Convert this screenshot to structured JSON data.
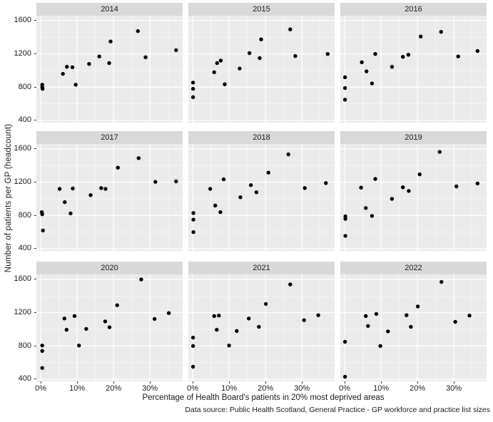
{
  "figure": {
    "y_axis_title": "Number of patients per GP (headcount)",
    "x_axis_title": "Percentage of Health Board's patients in 20% most deprived areas",
    "caption": "Data source: Public Health Scotland, General Practice - GP workforce and practice list sizes"
  },
  "chart_data": {
    "type": "scatter",
    "facet_variable": "year",
    "xlabel": "Percentage of Health Board's patients in 20% most deprived areas",
    "ylabel": "Number of patients per GP (headcount)",
    "xlim": [
      -1.2,
      39.0
    ],
    "ylim": [
      374,
      1660
    ],
    "x_ticks": [
      0,
      10,
      20,
      30
    ],
    "x_tick_labels": [
      "0%",
      "10%",
      "20%",
      "30%"
    ],
    "y_ticks": [
      400,
      800,
      1200,
      1600
    ],
    "y_tick_labels": [
      "400",
      "800",
      "1200",
      "1600"
    ],
    "x_minor": [
      5,
      15,
      25,
      35
    ],
    "y_minor": [
      600,
      1000,
      1400
    ],
    "grid": "on",
    "legend": "none",
    "colors": {
      "panel_background": "#ebebeb",
      "strip_background": "#d9d9d9",
      "gridline": "#ffffff",
      "point": "#000000",
      "text": "#1a1a1a"
    },
    "facets": [
      {
        "label": "2014",
        "points": [
          [
            0.4,
            830
          ],
          [
            0.4,
            800
          ],
          [
            0.5,
            780
          ],
          [
            6.1,
            960
          ],
          [
            7.2,
            1045
          ],
          [
            8.7,
            1040
          ],
          [
            9.6,
            830
          ],
          [
            13.3,
            1080
          ],
          [
            16.1,
            1170
          ],
          [
            18.8,
            1090
          ],
          [
            19.2,
            1350
          ],
          [
            26.7,
            1475
          ],
          [
            28.8,
            1160
          ],
          [
            37.2,
            1245
          ]
        ]
      },
      {
        "label": "2015",
        "points": [
          [
            0.1,
            855
          ],
          [
            0.1,
            780
          ],
          [
            0.1,
            680
          ],
          [
            5.9,
            980
          ],
          [
            6.7,
            1090
          ],
          [
            7.7,
            1120
          ],
          [
            8.8,
            835
          ],
          [
            12.9,
            1025
          ],
          [
            15.6,
            1210
          ],
          [
            18.4,
            1150
          ],
          [
            18.8,
            1375
          ],
          [
            26.8,
            1495
          ],
          [
            28.2,
            1175
          ],
          [
            37.1,
            1200
          ]
        ]
      },
      {
        "label": "2016",
        "points": [
          [
            0.1,
            920
          ],
          [
            0.1,
            790
          ],
          [
            0.1,
            650
          ],
          [
            4.7,
            1100
          ],
          [
            6.0,
            990
          ],
          [
            7.5,
            845
          ],
          [
            8.4,
            1200
          ],
          [
            13.0,
            1045
          ],
          [
            16.0,
            1165
          ],
          [
            17.5,
            1190
          ],
          [
            20.9,
            1410
          ],
          [
            26.5,
            1465
          ],
          [
            31.2,
            1170
          ],
          [
            36.5,
            1235
          ]
        ]
      },
      {
        "label": "2017",
        "points": [
          [
            0.3,
            840
          ],
          [
            0.4,
            815
          ],
          [
            0.6,
            620
          ],
          [
            5.2,
            1120
          ],
          [
            6.6,
            960
          ],
          [
            8.2,
            825
          ],
          [
            8.8,
            1125
          ],
          [
            13.7,
            1045
          ],
          [
            16.6,
            1130
          ],
          [
            17.8,
            1120
          ],
          [
            21.2,
            1375
          ],
          [
            26.9,
            1490
          ],
          [
            31.5,
            1205
          ],
          [
            37.2,
            1210
          ]
        ]
      },
      {
        "label": "2018",
        "points": [
          [
            0.2,
            830
          ],
          [
            0.2,
            750
          ],
          [
            0.2,
            600
          ],
          [
            4.8,
            1120
          ],
          [
            6.2,
            920
          ],
          [
            7.6,
            840
          ],
          [
            8.5,
            1235
          ],
          [
            13.1,
            1020
          ],
          [
            16.0,
            1165
          ],
          [
            17.5,
            1080
          ],
          [
            20.8,
            1315
          ],
          [
            26.3,
            1535
          ],
          [
            30.8,
            1130
          ],
          [
            36.6,
            1190
          ]
        ]
      },
      {
        "label": "2019",
        "points": [
          [
            0.2,
            790
          ],
          [
            0.2,
            760
          ],
          [
            0.2,
            555
          ],
          [
            4.5,
            1135
          ],
          [
            5.8,
            890
          ],
          [
            7.5,
            795
          ],
          [
            8.4,
            1240
          ],
          [
            13.0,
            1000
          ],
          [
            16.0,
            1140
          ],
          [
            17.6,
            1095
          ],
          [
            20.6,
            1295
          ],
          [
            26.1,
            1565
          ],
          [
            30.7,
            1150
          ],
          [
            36.5,
            1185
          ]
        ]
      },
      {
        "label": "2020",
        "points": [
          [
            0.4,
            805
          ],
          [
            0.4,
            740
          ],
          [
            0.4,
            535
          ],
          [
            6.5,
            1130
          ],
          [
            7.1,
            995
          ],
          [
            9.3,
            1160
          ],
          [
            10.5,
            805
          ],
          [
            12.5,
            1005
          ],
          [
            17.7,
            1095
          ],
          [
            18.9,
            1025
          ],
          [
            21.0,
            1290
          ],
          [
            27.6,
            1600
          ],
          [
            31.3,
            1125
          ],
          [
            35.2,
            1195
          ]
        ]
      },
      {
        "label": "2021",
        "points": [
          [
            0.1,
            900
          ],
          [
            0.1,
            800
          ],
          [
            0.1,
            550
          ],
          [
            5.9,
            1160
          ],
          [
            6.6,
            995
          ],
          [
            7.2,
            1165
          ],
          [
            10.0,
            805
          ],
          [
            12.1,
            980
          ],
          [
            15.4,
            1130
          ],
          [
            18.2,
            1030
          ],
          [
            20.1,
            1305
          ],
          [
            26.8,
            1540
          ],
          [
            30.6,
            1110
          ],
          [
            34.5,
            1170
          ]
        ]
      },
      {
        "label": "2022",
        "points": [
          [
            0.1,
            850
          ],
          [
            0.1,
            430
          ],
          [
            5.8,
            1160
          ],
          [
            6.4,
            1040
          ],
          [
            8.7,
            1185
          ],
          [
            9.8,
            800
          ],
          [
            11.9,
            975
          ],
          [
            17.0,
            1170
          ],
          [
            18.2,
            1030
          ],
          [
            20.1,
            1275
          ],
          [
            26.6,
            1570
          ],
          [
            30.4,
            1090
          ],
          [
            34.3,
            1165
          ]
        ]
      }
    ]
  }
}
